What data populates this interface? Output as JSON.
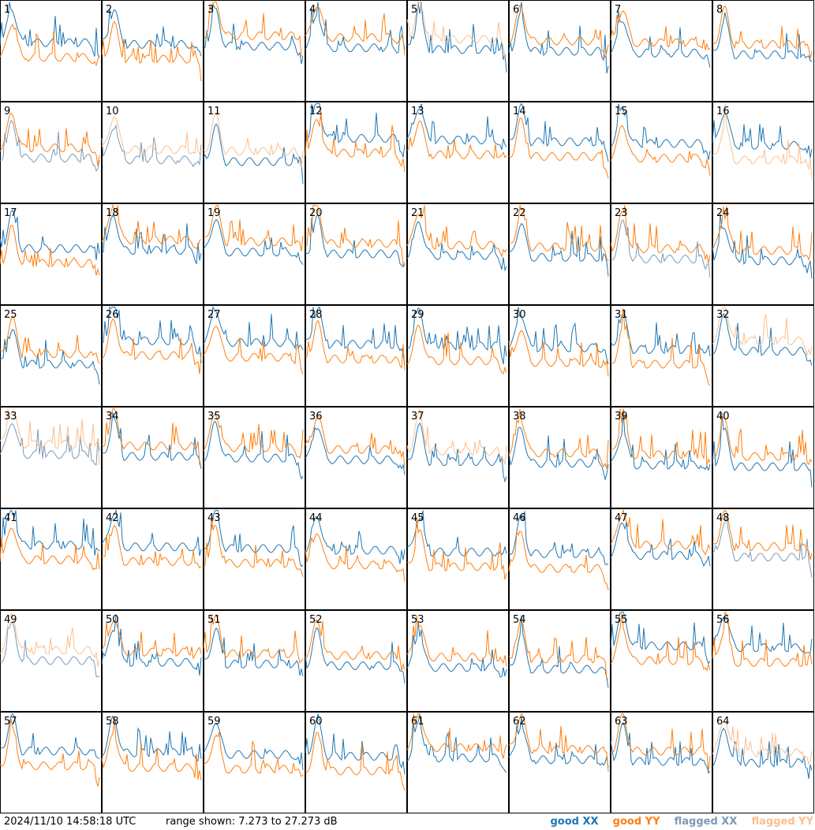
{
  "footer": {
    "timestamp": "2024/11/10 14:58:18 UTC",
    "range_label": "range shown: 7.273 to 27.273 dB"
  },
  "legend": {
    "good_xx": "good XX",
    "good_yy": "good YY",
    "flagged_xx": "flagged XX",
    "flagged_yy": "flagged YY"
  },
  "colors": {
    "good_xx": "#1f77b4",
    "good_yy": "#ff7f0e",
    "flagged_xx": "#7b9ab8",
    "flagged_yy": "#fbc08f"
  },
  "chart_data": {
    "type": "line",
    "ylim": [
      7.273,
      27.273
    ],
    "ylabel": "dB",
    "grid": false,
    "layout": "8x8 small multiples",
    "panels": [
      {
        "id": "1",
        "xx": "good",
        "yy": "good"
      },
      {
        "id": "2",
        "xx": "good",
        "yy": "good"
      },
      {
        "id": "3",
        "xx": "good",
        "yy": "good"
      },
      {
        "id": "4",
        "xx": "good",
        "yy": "good"
      },
      {
        "id": "5",
        "xx": "good",
        "yy": "flagged"
      },
      {
        "id": "6",
        "xx": "good",
        "yy": "good"
      },
      {
        "id": "7",
        "xx": "good",
        "yy": "good"
      },
      {
        "id": "8",
        "xx": "good",
        "yy": "good"
      },
      {
        "id": "9",
        "xx": "flagged",
        "yy": "good"
      },
      {
        "id": "10",
        "xx": "flagged",
        "yy": "flagged"
      },
      {
        "id": "11",
        "xx": "good",
        "yy": "flagged"
      },
      {
        "id": "12",
        "xx": "good",
        "yy": "good"
      },
      {
        "id": "13",
        "xx": "good",
        "yy": "good"
      },
      {
        "id": "14",
        "xx": "good",
        "yy": "good"
      },
      {
        "id": "15",
        "xx": "good",
        "yy": "good"
      },
      {
        "id": "16",
        "xx": "good",
        "yy": "flagged"
      },
      {
        "id": "17",
        "xx": "good",
        "yy": "good"
      },
      {
        "id": "18",
        "xx": "good",
        "yy": "good"
      },
      {
        "id": "19",
        "xx": "good",
        "yy": "good"
      },
      {
        "id": "20",
        "xx": "good",
        "yy": "good"
      },
      {
        "id": "21",
        "xx": "good",
        "yy": "good"
      },
      {
        "id": "22",
        "xx": "good",
        "yy": "good"
      },
      {
        "id": "23",
        "xx": "flagged",
        "yy": "good"
      },
      {
        "id": "24",
        "xx": "good",
        "yy": "good"
      },
      {
        "id": "25",
        "xx": "good",
        "yy": "good"
      },
      {
        "id": "26",
        "xx": "good",
        "yy": "good"
      },
      {
        "id": "27",
        "xx": "good",
        "yy": "good"
      },
      {
        "id": "28",
        "xx": "good",
        "yy": "good"
      },
      {
        "id": "29",
        "xx": "good",
        "yy": "good"
      },
      {
        "id": "30",
        "xx": "good",
        "yy": "good"
      },
      {
        "id": "31",
        "xx": "good",
        "yy": "good"
      },
      {
        "id": "32",
        "xx": "good",
        "yy": "flagged"
      },
      {
        "id": "33",
        "xx": "flagged",
        "yy": "flagged"
      },
      {
        "id": "34",
        "xx": "good",
        "yy": "good"
      },
      {
        "id": "35",
        "xx": "good",
        "yy": "good"
      },
      {
        "id": "36",
        "xx": "good",
        "yy": "good"
      },
      {
        "id": "37",
        "xx": "good",
        "yy": "flagged"
      },
      {
        "id": "38",
        "xx": "good",
        "yy": "good"
      },
      {
        "id": "39",
        "xx": "good",
        "yy": "good"
      },
      {
        "id": "40",
        "xx": "good",
        "yy": "good"
      },
      {
        "id": "41",
        "xx": "good",
        "yy": "good"
      },
      {
        "id": "42",
        "xx": "good",
        "yy": "good"
      },
      {
        "id": "43",
        "xx": "good",
        "yy": "good"
      },
      {
        "id": "44",
        "xx": "good",
        "yy": "good"
      },
      {
        "id": "45",
        "xx": "good",
        "yy": "good"
      },
      {
        "id": "46",
        "xx": "good",
        "yy": "good"
      },
      {
        "id": "47",
        "xx": "good",
        "yy": "good"
      },
      {
        "id": "48",
        "xx": "flagged",
        "yy": "good"
      },
      {
        "id": "49",
        "xx": "flagged",
        "yy": "flagged"
      },
      {
        "id": "50",
        "xx": "good",
        "yy": "good"
      },
      {
        "id": "51",
        "xx": "good",
        "yy": "good"
      },
      {
        "id": "52",
        "xx": "good",
        "yy": "good"
      },
      {
        "id": "53",
        "xx": "good",
        "yy": "good"
      },
      {
        "id": "54",
        "xx": "good",
        "yy": "good"
      },
      {
        "id": "55",
        "xx": "good",
        "yy": "good"
      },
      {
        "id": "56",
        "xx": "good",
        "yy": "good"
      },
      {
        "id": "57",
        "xx": "good",
        "yy": "good"
      },
      {
        "id": "58",
        "xx": "good",
        "yy": "good"
      },
      {
        "id": "59",
        "xx": "good",
        "yy": "good"
      },
      {
        "id": "60",
        "xx": "good",
        "yy": "good"
      },
      {
        "id": "61",
        "xx": "good",
        "yy": "good"
      },
      {
        "id": "62",
        "xx": "good",
        "yy": "good"
      },
      {
        "id": "63",
        "xx": "good",
        "yy": "good"
      },
      {
        "id": "64",
        "xx": "good",
        "yy": "flagged"
      }
    ]
  }
}
